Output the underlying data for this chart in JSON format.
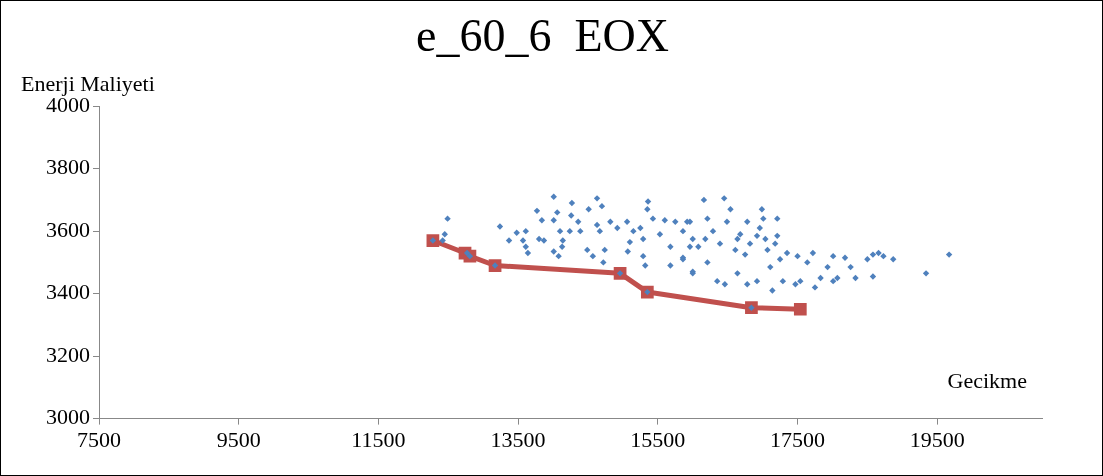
{
  "chart_data": {
    "type": "scatter",
    "title": "e_60_6  EOX",
    "xlabel": "Gecikme",
    "ylabel": "Enerji Maliyeti",
    "xlim": [
      7500,
      21000
    ],
    "xticks": [
      7500,
      9500,
      11500,
      13500,
      15500,
      17500,
      19500
    ],
    "ylim": [
      3000,
      4000
    ],
    "yticks": [
      3000,
      3200,
      3400,
      3600,
      3800,
      4000
    ],
    "grid": false,
    "legend": false,
    "series": [
      {
        "color": "#4f81bd",
        "marker": "diamond",
        "x": [
          12490,
          12280,
          12420,
          12450,
          12770,
          12810,
          13170,
          13240,
          13370,
          13480,
          13610,
          13570,
          13610,
          13640,
          13770,
          13840,
          13800,
          13870,
          14010,
          14060,
          14010,
          14100,
          14140,
          14130,
          14010,
          14080,
          14270,
          14260,
          14360,
          14240,
          14390,
          14490,
          14570,
          14510,
          14630,
          14700,
          14630,
          14670,
          14740,
          14720,
          14820,
          14920,
          14960,
          15060,
          15150,
          15100,
          15070,
          15360,
          15350,
          15430,
          15250,
          15290,
          15290,
          15350,
          15320,
          15600,
          15530,
          15680,
          15680,
          15750,
          15860,
          15860,
          15960,
          16000,
          16000,
          16080,
          16160,
          16450,
          16540,
          16990,
          17210,
          15920,
          15960,
          15860,
          16000,
          16210,
          16290,
          16210,
          16350,
          16460,
          16490,
          16640,
          16640,
          16780,
          16780,
          16920,
          17010,
          16920,
          17070,
          17110,
          17140,
          17210,
          17250,
          17290,
          17350,
          17500,
          17540,
          17470,
          17640,
          17720,
          17830,
          17750,
          17930,
          18010,
          18070,
          18010,
          18180,
          18260,
          18330,
          18500,
          18580,
          18660,
          18580,
          18730,
          18870,
          19340,
          19670,
          16840,
          16680,
          16820,
          16960,
          16610,
          16390,
          16180,
          16750,
          17180,
          17040
        ],
        "values": [
          3640,
          3570,
          3570,
          3590,
          3530,
          3520,
          3490,
          3615,
          3570,
          3595,
          3600,
          3570,
          3550,
          3530,
          3665,
          3635,
          3575,
          3570,
          3710,
          3660,
          3635,
          3600,
          3570,
          3550,
          3535,
          3520,
          3690,
          3650,
          3630,
          3600,
          3600,
          3540,
          3520,
          3670,
          3705,
          3680,
          3620,
          3600,
          3540,
          3500,
          3630,
          3610,
          3465,
          3630,
          3600,
          3565,
          3535,
          3695,
          3670,
          3640,
          3610,
          3575,
          3520,
          3405,
          3490,
          3635,
          3590,
          3550,
          3490,
          3630,
          3600,
          3515,
          3630,
          3575,
          3470,
          3550,
          3700,
          3705,
          3670,
          3670,
          3640,
          3630,
          3550,
          3510,
          3465,
          3640,
          3600,
          3500,
          3440,
          3430,
          3630,
          3575,
          3465,
          3430,
          3630,
          3585,
          3640,
          3440,
          3540,
          3485,
          3410,
          3585,
          3510,
          3440,
          3530,
          3520,
          3440,
          3430,
          3500,
          3530,
          3450,
          3420,
          3485,
          3520,
          3450,
          3440,
          3515,
          3485,
          3450,
          3510,
          3525,
          3530,
          3455,
          3520,
          3510,
          3465,
          3525,
          3355,
          3590,
          3560,
          3610,
          3540,
          3560,
          3575,
          3525,
          3560,
          3575
        ]
      },
      {
        "type": "line",
        "color": "#c0504d",
        "marker": "square",
        "line_style": "solid",
        "x": [
          12280,
          12740,
          12810,
          13170,
          14960,
          15350,
          16840,
          17540
        ],
        "values": [
          3570,
          3530,
          3520,
          3490,
          3465,
          3405,
          3355,
          3350
        ]
      }
    ]
  }
}
